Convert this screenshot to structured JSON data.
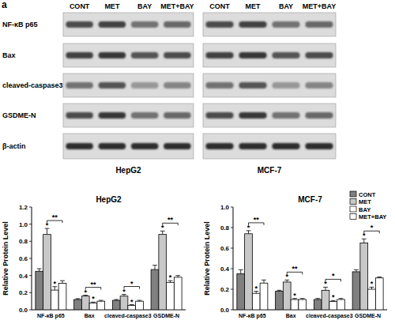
{
  "panel_label": "a",
  "blot_rows": [
    "NF-κB p65",
    "Bax",
    "cleaved-caspase3",
    "GSDME-N",
    "β-actin"
  ],
  "blots": [
    {
      "cell_line": "HepG2",
      "lanes": [
        "CONT",
        "MET",
        "BAY",
        "MET+BAY"
      ]
    },
    {
      "cell_line": "MCF-7",
      "lanes": [
        "CONT",
        "MET",
        "BAY",
        "MET+BAY"
      ]
    }
  ],
  "chart_data": [
    {
      "type": "bar",
      "title": "HepG2",
      "y_label": "Relative Protein Level",
      "categories": [
        "NF-κB p65",
        "Bax",
        "cleaved-caspase3",
        "GSDME-N"
      ],
      "series": [
        {
          "name": "CONT",
          "color": "#808080",
          "values": [
            0.45,
            0.12,
            0.11,
            0.47
          ],
          "errors": [
            0.03,
            0.01,
            0.01,
            0.05
          ]
        },
        {
          "name": "MET",
          "color": "#c8c8c8",
          "values": [
            0.88,
            0.16,
            0.16,
            0.88
          ],
          "errors": [
            0.07,
            0.01,
            0.02,
            0.04
          ],
          "significance": [
            "*",
            "*",
            "*",
            "*"
          ]
        },
        {
          "name": "BAY",
          "color": "#ffffff",
          "values": [
            0.23,
            0.08,
            0.05,
            0.32
          ],
          "errors": [
            0.04,
            0.01,
            0.01,
            0.02
          ],
          "significance": [
            "*",
            "*",
            "*",
            "*"
          ]
        },
        {
          "name": "MET+BAY",
          "color": "#ffffff",
          "values": [
            0.31,
            0.1,
            0.1,
            0.38
          ],
          "errors": [
            0.03,
            0.01,
            0.01,
            0.02
          ]
        }
      ],
      "brackets": [
        {
          "text": "**",
          "category": 0,
          "from": 1,
          "to": 3
        },
        {
          "text": "**",
          "category": 1,
          "from": 1,
          "to": 3
        },
        {
          "text": "*",
          "category": 2,
          "from": 1,
          "to": 3
        },
        {
          "text": "**",
          "category": 3,
          "from": 1,
          "to": 3
        }
      ],
      "ylim": [
        0,
        1.2
      ],
      "yticks": [
        {
          "value": 0,
          "label": "0.0"
        },
        {
          "value": 0.2,
          "label": "0.2"
        },
        {
          "value": 0.4,
          "label": "0.4"
        },
        {
          "value": 0.6,
          "label": "0.6"
        },
        {
          "value": 0.8,
          "label": "0.8"
        },
        {
          "value": 1.0,
          "label": "1.0"
        },
        {
          "value": 1.2,
          "label": "1.2"
        }
      ]
    },
    {
      "type": "bar",
      "title": "MCF-7",
      "y_label": "Relative Protein Level",
      "categories": [
        "NF-κB p65",
        "Bax",
        "cleaved-caspase3",
        "GSDME-N"
      ],
      "series": [
        {
          "name": "CONT",
          "color": "#808080",
          "values": [
            0.35,
            0.18,
            0.1,
            0.37
          ],
          "errors": [
            0.04,
            0.01,
            0.01,
            0.02
          ]
        },
        {
          "name": "MET",
          "color": "#c8c8c8",
          "values": [
            0.74,
            0.27,
            0.19,
            0.65
          ],
          "errors": [
            0.03,
            0.02,
            0.03,
            0.04
          ],
          "significance": [
            "*",
            "*",
            "*",
            "*"
          ]
        },
        {
          "name": "BAY",
          "color": "#ffffff",
          "values": [
            0.16,
            0.1,
            0.08,
            0.2
          ],
          "errors": [
            0.02,
            0.01,
            0.01,
            0.02
          ],
          "significance": [
            "*",
            "*",
            "*",
            "*"
          ]
        },
        {
          "name": "MET+BAY",
          "color": "#ffffff",
          "values": [
            0.26,
            0.1,
            0.1,
            0.31
          ],
          "errors": [
            0.03,
            0.01,
            0.01,
            0.01
          ]
        }
      ],
      "brackets": [
        {
          "text": "**",
          "category": 0,
          "from": 1,
          "to": 3
        },
        {
          "text": "**",
          "category": 1,
          "from": 1,
          "to": 3
        },
        {
          "text": "*",
          "category": 2,
          "from": 1,
          "to": 3
        },
        {
          "text": "*",
          "category": 3,
          "from": 1,
          "to": 3
        }
      ],
      "legend": "top-right",
      "ylim": [
        0,
        1.0
      ],
      "yticks": [
        {
          "value": 0,
          "label": "0.0"
        },
        {
          "value": 0.2,
          "label": "0.2"
        },
        {
          "value": 0.4,
          "label": "0.4"
        },
        {
          "value": 0.6,
          "label": "0.6"
        },
        {
          "value": 0.8,
          "label": "0.8"
        },
        {
          "value": 1.0,
          "label": "1.0"
        }
      ]
    }
  ]
}
